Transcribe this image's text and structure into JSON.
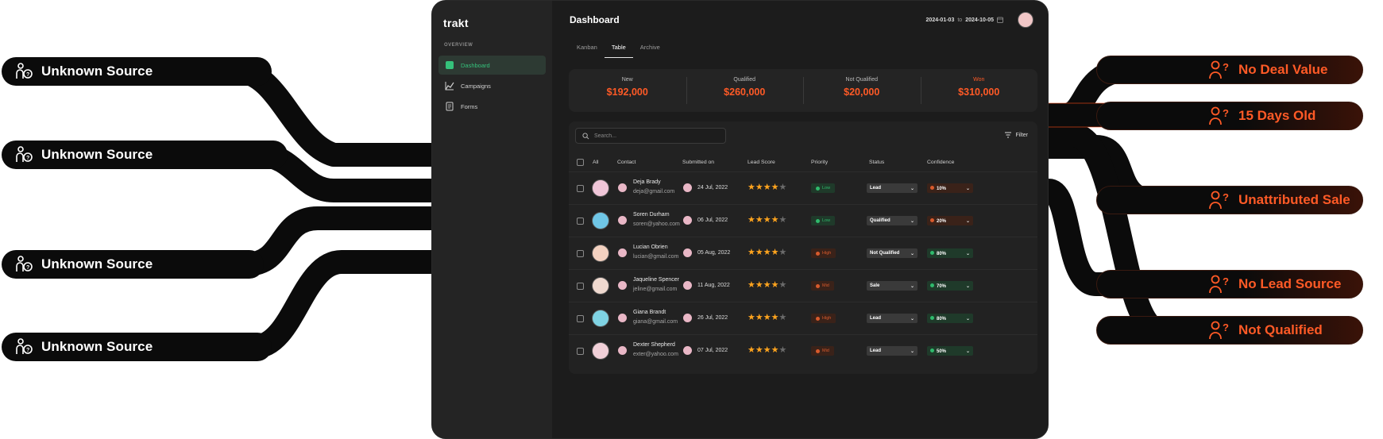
{
  "left_labels": [
    "Unknown Source",
    "Unknown Source",
    "Unknown Source",
    "Unknown Source"
  ],
  "right_labels": [
    "No Deal Value",
    "15 Days Old",
    "Unattributed Sale",
    "No Lead Source",
    "Not Qualified"
  ],
  "app": {
    "logo": "trakt",
    "sidebar_section": "OVERVIEW",
    "nav": [
      {
        "label": "Dashboard",
        "icon": "dashboard-icon",
        "active": true
      },
      {
        "label": "Campaigns",
        "icon": "chart-line-icon",
        "active": false
      },
      {
        "label": "Forms",
        "icon": "document-icon",
        "active": false
      }
    ],
    "title": "Dashboard",
    "date_from": "2024-01-03",
    "date_to_word": "to",
    "date_to": "2024-10-05",
    "tabs": [
      "Kanban",
      "Table",
      "Archive"
    ],
    "active_tab": "Table",
    "stats": [
      {
        "label": "New",
        "value": "$192,000"
      },
      {
        "label": "Qualified",
        "value": "$260,000"
      },
      {
        "label": "Not Qualified",
        "value": "$20,000"
      },
      {
        "label": "Won",
        "value": "$310,000"
      }
    ],
    "search_placeholder": "Search...",
    "filter_label": "Filter",
    "columns": [
      "All",
      "Contact",
      "Submitted on",
      "Lead Score",
      "Priority",
      "Status",
      "Confidence"
    ],
    "rows": [
      {
        "name": "Deja Brady",
        "email": "deja@gmail.com",
        "date": "24 Jul, 2022",
        "stars": 4,
        "priority": "Low",
        "status": "Lead",
        "confidence": "10%"
      },
      {
        "name": "Soren Durham",
        "email": "soren@yahoo.com",
        "date": "06 Jul, 2022",
        "stars": 4,
        "priority": "Low",
        "status": "Qualified",
        "confidence": "20%"
      },
      {
        "name": "Lucian Obrien",
        "email": "lucian@gmail.com",
        "date": "05 Aug, 2022",
        "stars": 4,
        "priority": "High",
        "status": "Not Qualified",
        "confidence": "80%"
      },
      {
        "name": "Jaqueline Spencer",
        "email": "jeline@gmail.com",
        "date": "11 Aug, 2022",
        "stars": 4,
        "priority": "Mid",
        "status": "Sale",
        "confidence": "70%"
      },
      {
        "name": "Giana Brandt",
        "email": "giana@gmail.com",
        "date": "26 Jul, 2022",
        "stars": 4,
        "priority": "High",
        "status": "Lead",
        "confidence": "80%"
      },
      {
        "name": "Dexter Shepherd",
        "email": "exter@yahoo.com",
        "date": "07 Jul, 2022",
        "stars": 4,
        "priority": "Mid",
        "status": "Lead",
        "confidence": "50%"
      }
    ],
    "colors": {
      "accent": "#ff5a26",
      "green": "#35c27b",
      "bg": "#1c1c1c"
    }
  }
}
